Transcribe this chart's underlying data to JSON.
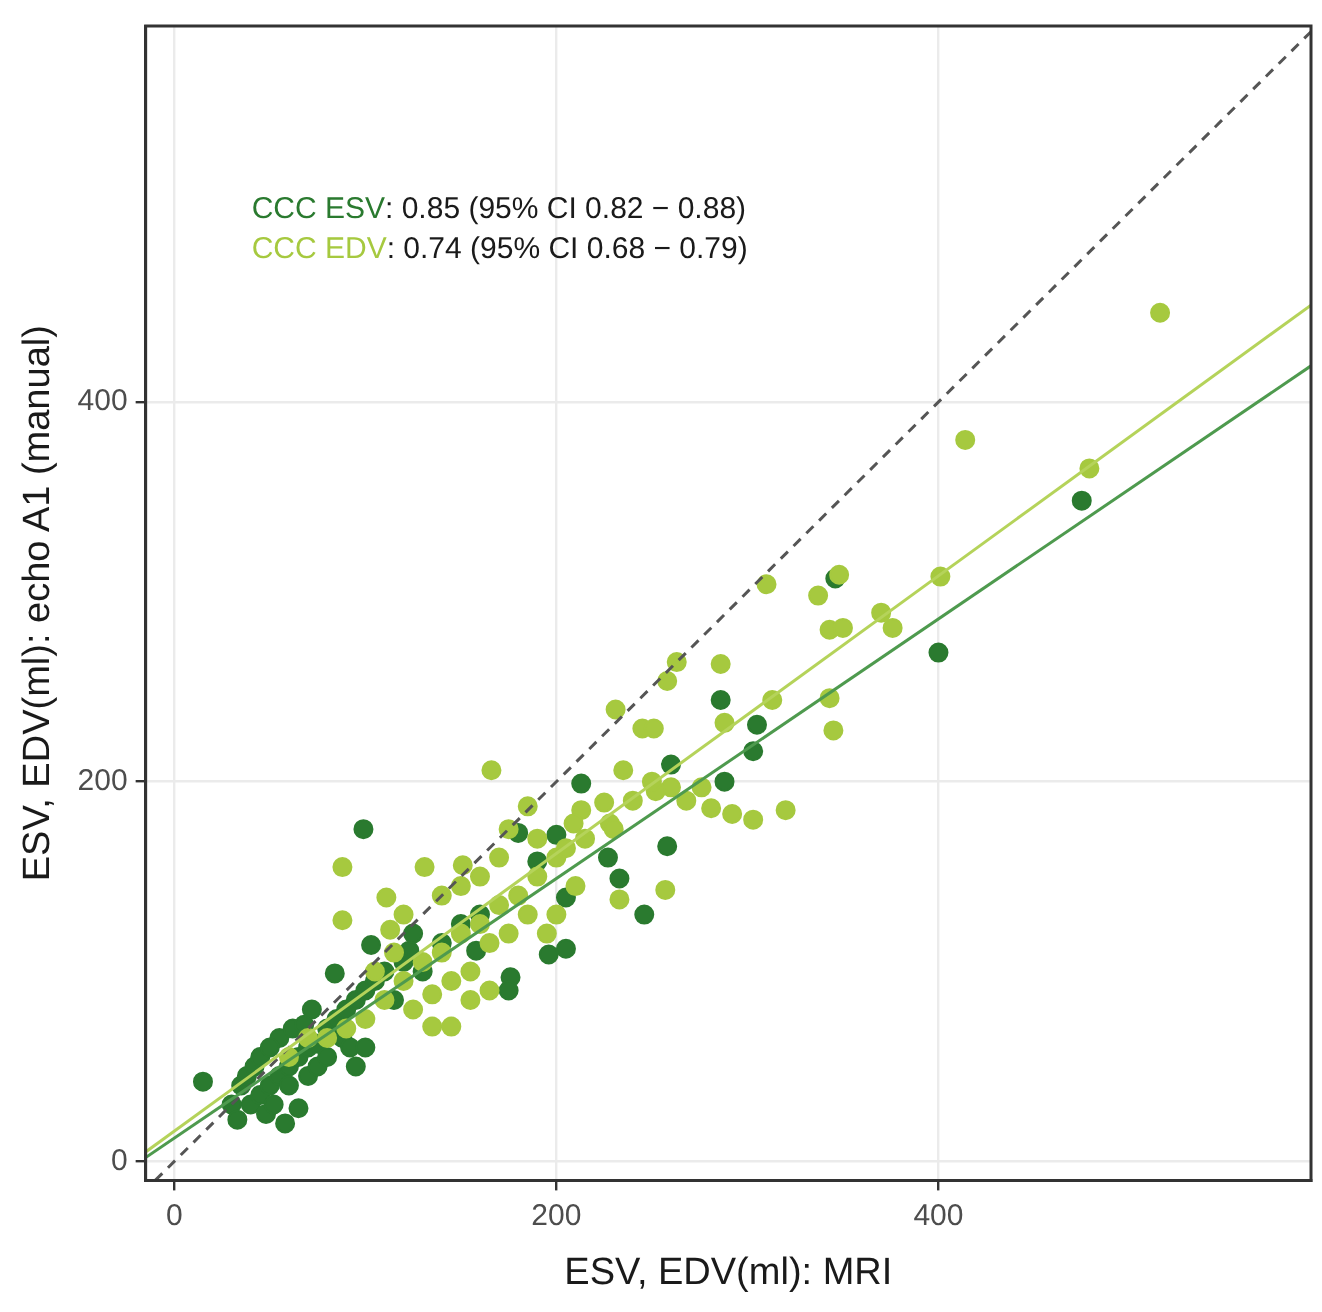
{
  "chart_data": {
    "type": "scatter",
    "xlabel": "ESV, EDV(ml): MRI",
    "ylabel": "ESV, EDV(ml): echo A1 (manual)",
    "xlim": [
      -15,
      595
    ],
    "ylim": [
      -10,
      598
    ],
    "xticks": [
      0,
      200,
      400
    ],
    "yticks": [
      0,
      200,
      400
    ],
    "grid": true,
    "marker": "circle",
    "annotations": [
      "CCC ESV: 0.85 (95% CI 0.82 − 0.88)",
      "CCC EDV: 0.74 (95% CI 0.68 − 0.79)"
    ],
    "series": [
      {
        "type": "scatter",
        "color": "#a6c93f",
        "x": [
          516,
          414,
          479,
          401,
          310,
          337,
          348,
          343,
          350,
          370,
          376,
          345,
          343,
          313,
          286,
          263,
          258,
          231,
          245,
          251,
          288,
          166,
          235,
          320,
          303,
          292,
          281,
          276,
          268,
          260,
          252,
          225,
          213,
          209,
          228,
          257,
          233,
          88,
          88,
          111,
          131,
          151,
          175,
          185,
          135,
          145,
          113,
          120,
          130,
          140,
          150,
          160,
          170,
          180,
          190,
          200,
          165,
          175,
          185,
          145,
          155,
          125,
          135,
          110,
          100,
          90,
          80,
          160,
          170,
          190,
          205,
          215,
          230,
          240,
          250,
          120,
          140,
          155,
          165,
          200,
          210,
          195,
          150,
          105,
          115,
          60,
          70
        ],
        "values": [
          447,
          380,
          365,
          308,
          304,
          298,
          309,
          280,
          281,
          289,
          281,
          227,
          244,
          243,
          262,
          263,
          253,
          238,
          228,
          228,
          231,
          206,
          206,
          185,
          180,
          183,
          186,
          197,
          190,
          197,
          195,
          189,
          185,
          178,
          178,
          143,
          138,
          155,
          127,
          139,
          155,
          156,
          175,
          187,
          71,
          71,
          122,
          95,
          105,
          110,
          120,
          125,
          135,
          140,
          150,
          160,
          115,
          120,
          130,
          95,
          100,
          80,
          88,
          85,
          75,
          70,
          65,
          150,
          160,
          170,
          165,
          170,
          175,
          190,
          200,
          130,
          140,
          85,
          90,
          130,
          145,
          120,
          145,
          100,
          110,
          55,
          65
        ]
      },
      {
        "type": "scatter",
        "color": "#2a7a2f",
        "x": [
          99,
          286,
          213,
          400,
          475,
          346,
          305,
          303,
          288,
          260,
          258,
          246,
          233,
          227,
          205,
          196,
          205,
          200,
          190,
          176,
          175,
          180,
          158,
          123,
          103,
          84,
          15,
          40,
          45,
          50,
          55,
          60,
          48,
          52,
          65,
          70,
          75,
          80,
          85,
          90,
          95,
          100,
          105,
          110,
          60,
          70,
          75,
          80,
          35,
          38,
          42,
          55,
          62,
          68,
          72,
          88,
          92,
          58,
          65,
          45,
          30,
          33,
          50,
          115,
          120,
          125,
          130,
          140,
          150,
          160,
          95,
          100
        ],
        "values": [
          175,
          243,
          199,
          268,
          348,
          307,
          230,
          216,
          200,
          209,
          166,
          130,
          149,
          160,
          112,
          109,
          139,
          172,
          158,
          97,
          90,
          173,
          111,
          111,
          114,
          99,
          42,
          30,
          35,
          40,
          45,
          50,
          25,
          30,
          55,
          60,
          62,
          70,
          75,
          80,
          85,
          90,
          95,
          100,
          40,
          45,
          50,
          55,
          40,
          45,
          50,
          65,
          70,
          72,
          80,
          65,
          60,
          20,
          28,
          55,
          30,
          22,
          60,
          85,
          105,
          120,
          100,
          115,
          125,
          130,
          50,
          60
        ]
      },
      {
        "type": "line",
        "marker": "none",
        "color": "#b5d35a",
        "x": [
          -15,
          595
        ],
        "values": [
          5,
          451
        ]
      },
      {
        "type": "line",
        "marker": "none",
        "color": "#4e9a4e",
        "x": [
          -15,
          595
        ],
        "values": [
          2,
          419
        ]
      },
      {
        "type": "line",
        "marker": "none",
        "color": "#555555",
        "line_style": "dashed",
        "x": [
          -10,
          595
        ],
        "values": [
          -10,
          595
        ]
      }
    ]
  }
}
